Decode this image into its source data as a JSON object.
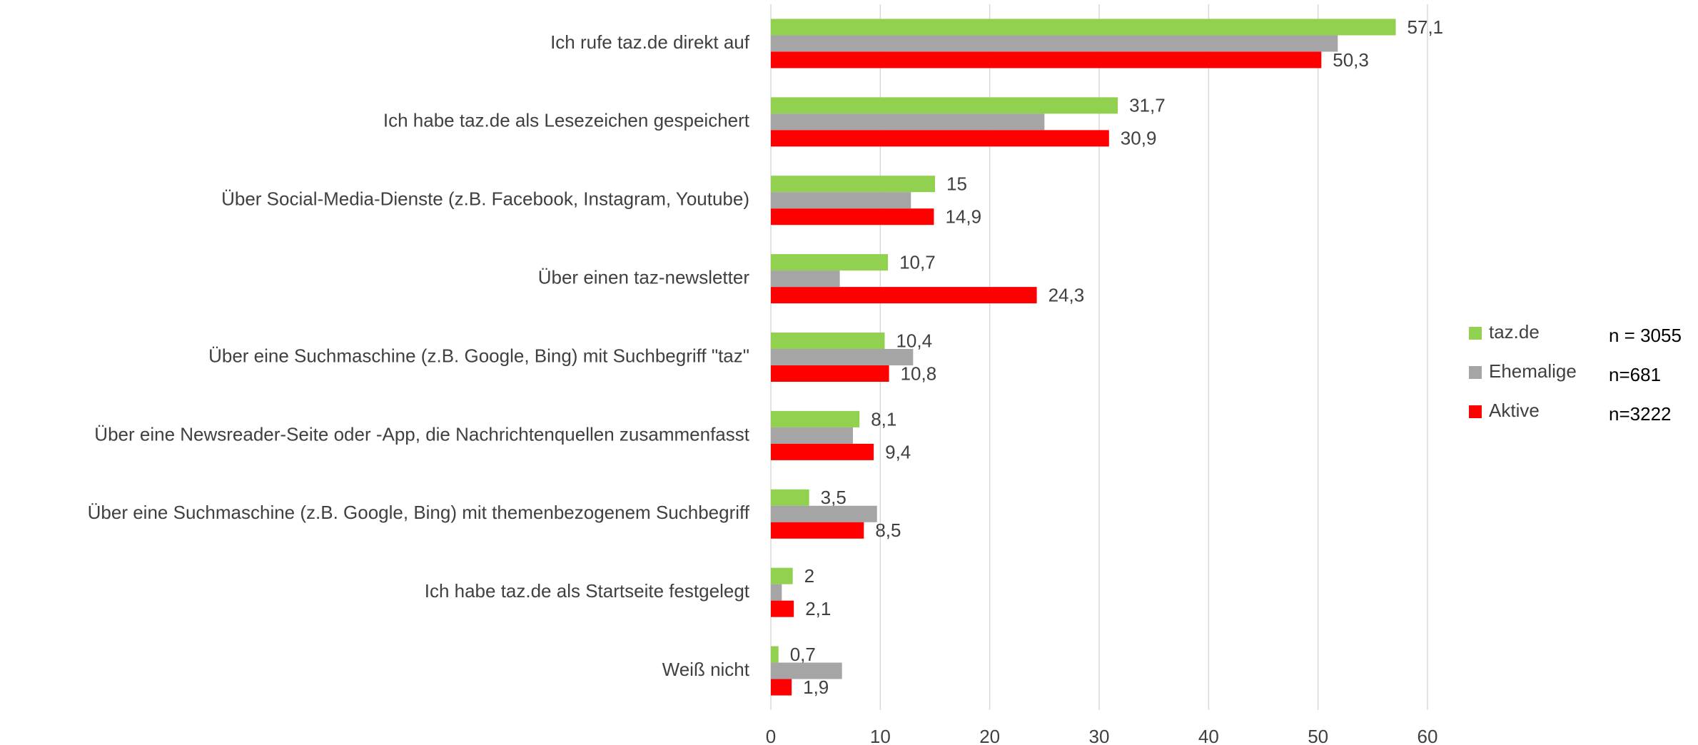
{
  "chart_data": {
    "type": "hbar",
    "categories": [
      "Ich rufe taz.de direkt auf",
      "Ich habe taz.de als Lesezeichen gespeichert",
      "Über Social-Media-Dienste (z.B. Facebook, Instagram, Youtube)",
      "Über einen taz-newsletter",
      "Über eine Suchmaschine (z.B. Google, Bing) mit Suchbegriff  \"taz\"",
      "Über eine Newsreader-Seite oder -App, die Nachrichtenquellen zusammenfasst",
      "Über eine Suchmaschine (z.B. Google, Bing) mit themenbezogenem Suchbegriff",
      "Ich habe taz.de als Startseite festgelegt",
      "Weiß nicht"
    ],
    "series": [
      {
        "name": "taz.de",
        "note": "n = 3055",
        "color": "#92d050",
        "values": [
          57.1,
          31.7,
          15,
          10.7,
          10.4,
          8.1,
          3.5,
          2,
          0.7
        ],
        "value_labels": [
          "57,1",
          "31,7",
          "15",
          "10,7",
          "10,4",
          "8,1",
          "3,5",
          "2",
          "0,7"
        ]
      },
      {
        "name": "Ehemalige",
        "note": "n=681",
        "color": "#a5a5a5",
        "values": [
          51.8,
          25,
          12.8,
          6.3,
          13,
          7.5,
          9.7,
          1,
          6.5
        ]
      },
      {
        "name": "Aktive",
        "note": "n=3222",
        "color": "#ff0000",
        "values": [
          50.3,
          30.9,
          14.9,
          24.3,
          10.8,
          9.4,
          8.5,
          2.1,
          1.9
        ],
        "value_labels": [
          "50,3",
          "30,9",
          "14,9",
          "24,3",
          "10,8",
          "9,4",
          "8,5",
          "2,1",
          "1,9"
        ]
      }
    ],
    "xlim": [
      0,
      60
    ],
    "xticks": [
      0,
      10,
      20,
      30,
      40,
      50,
      60
    ],
    "grid": true,
    "legend": "right"
  }
}
